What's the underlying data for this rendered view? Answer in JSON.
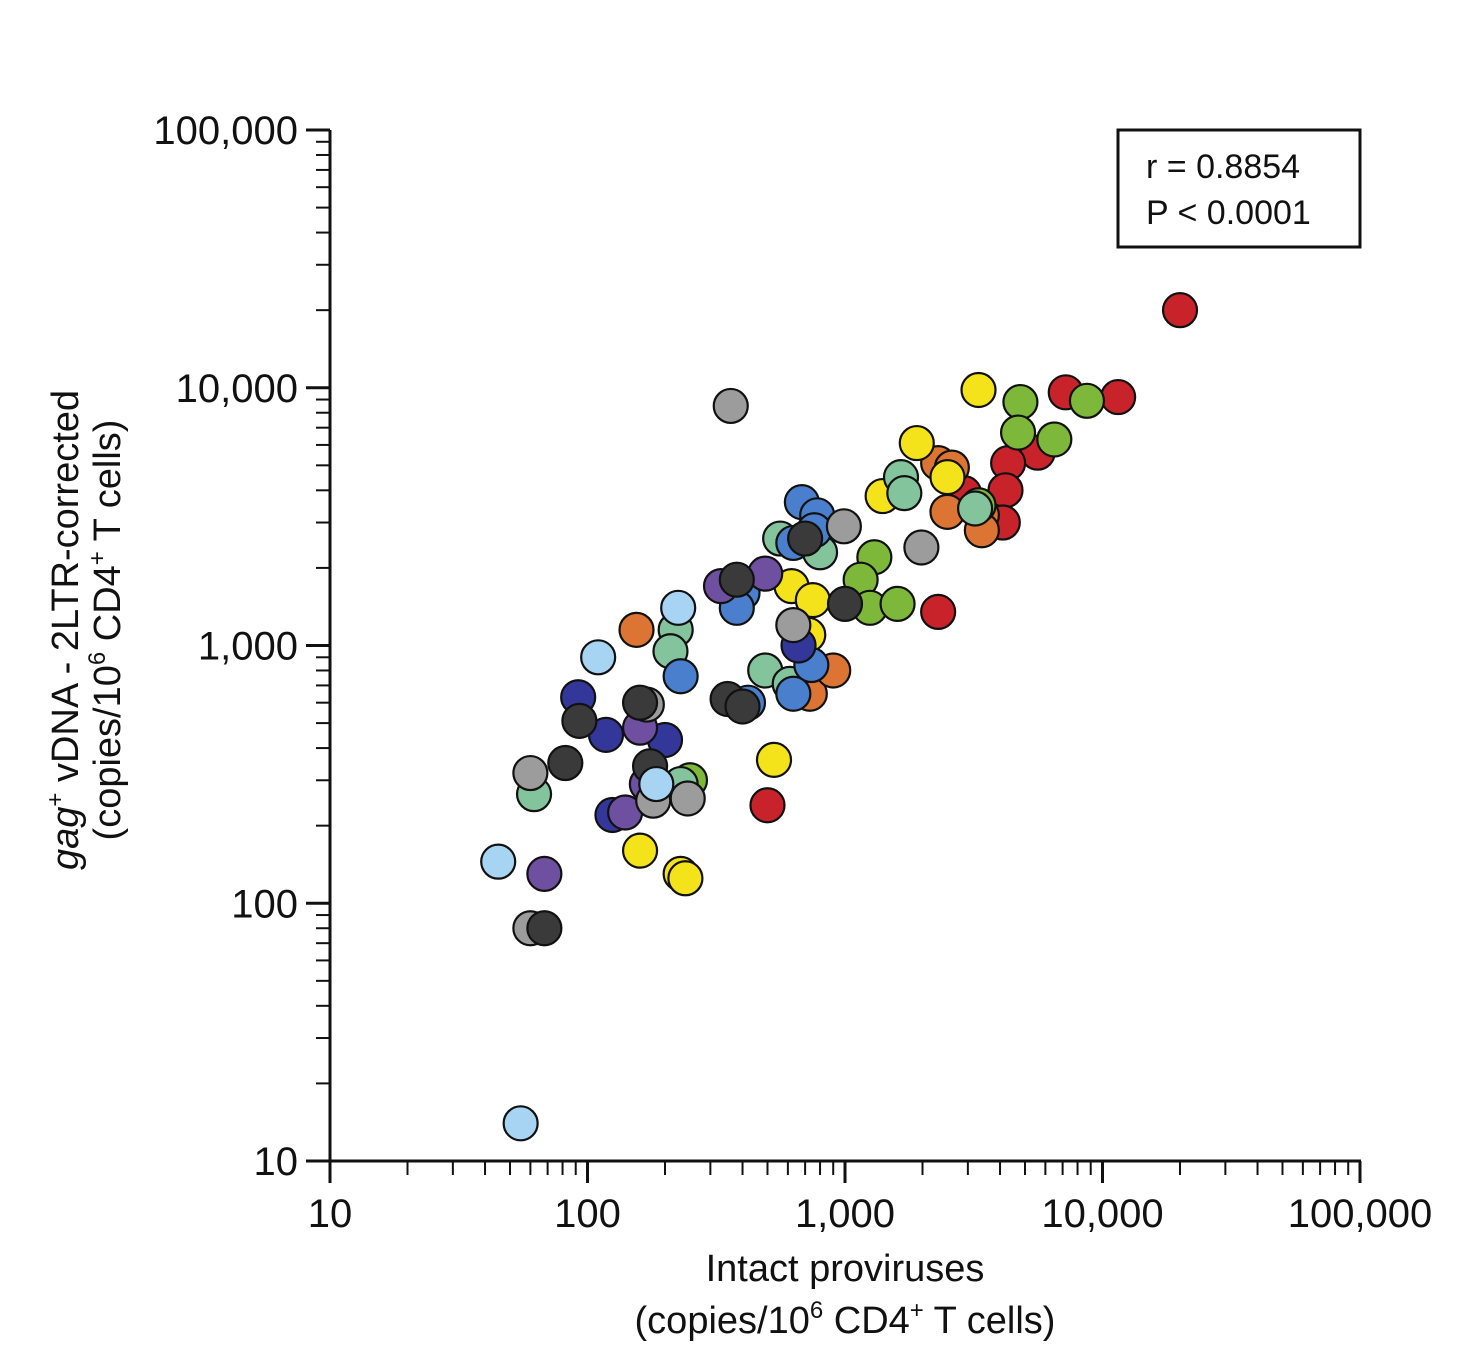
{
  "chart_data": {
    "type": "scatter",
    "x_scale": "log",
    "y_scale": "log",
    "xlim": [
      10,
      100000
    ],
    "ylim": [
      10,
      100000
    ],
    "grid": false,
    "xlabel_line1": "Intact proviruses",
    "xlabel_line2_pre": "(copies/10",
    "xlabel_line2_sup1": "6",
    "xlabel_line2_mid": " CD4",
    "xlabel_line2_sup2": "+",
    "xlabel_line2_post": " T cells)",
    "ylabel_line1_italic": "gag",
    "ylabel_line1_sup": "+",
    "ylabel_line1_rest": " vDNA - 2LTR-corrected",
    "ylabel_line2_pre": "(copies/10",
    "ylabel_line2_sup1": "6",
    "ylabel_line2_mid": " CD4",
    "ylabel_line2_sup2": "+",
    "ylabel_line2_post": " T cells)",
    "x_ticks": [
      "10",
      "100",
      "1,000",
      "10,000",
      "100,000"
    ],
    "y_ticks": [
      "10",
      "100",
      "1,000",
      "10,000",
      "100,000"
    ],
    "stats": {
      "r": "r = 0.8854",
      "p": "P < 0.0001"
    },
    "colors": {
      "red": "#c8232a",
      "orange": "#dc7433",
      "yellow": "#f4e21b",
      "green": "#7db83a",
      "seagreen": "#84c49c",
      "blue": "#4a7fcd",
      "navy": "#33379a",
      "purple": "#6e4fa0",
      "gray": "#9c9c9c",
      "dark": "#3a3a3a",
      "lightblue": "#a8d4f3"
    },
    "points": [
      {
        "x": 20000,
        "y": 20000,
        "c": "red"
      },
      {
        "x": 7200,
        "y": 9600,
        "c": "red"
      },
      {
        "x": 11500,
        "y": 9200,
        "c": "red"
      },
      {
        "x": 5600,
        "y": 5600,
        "c": "red"
      },
      {
        "x": 4300,
        "y": 5100,
        "c": "red"
      },
      {
        "x": 4200,
        "y": 4000,
        "c": "red"
      },
      {
        "x": 4100,
        "y": 3000,
        "c": "red"
      },
      {
        "x": 2900,
        "y": 3900,
        "c": "red"
      },
      {
        "x": 2300,
        "y": 1350,
        "c": "red"
      },
      {
        "x": 500,
        "y": 240,
        "c": "red"
      },
      {
        "x": 2300,
        "y": 5100,
        "c": "orange"
      },
      {
        "x": 2600,
        "y": 4900,
        "c": "orange"
      },
      {
        "x": 2500,
        "y": 3300,
        "c": "orange"
      },
      {
        "x": 3400,
        "y": 3200,
        "c": "orange"
      },
      {
        "x": 3400,
        "y": 2800,
        "c": "orange"
      },
      {
        "x": 730,
        "y": 650,
        "c": "orange"
      },
      {
        "x": 900,
        "y": 800,
        "c": "orange"
      },
      {
        "x": 155,
        "y": 1150,
        "c": "orange"
      },
      {
        "x": 3300,
        "y": 9800,
        "c": "yellow"
      },
      {
        "x": 1900,
        "y": 6100,
        "c": "yellow"
      },
      {
        "x": 2500,
        "y": 4500,
        "c": "yellow"
      },
      {
        "x": 1400,
        "y": 3800,
        "c": "yellow"
      },
      {
        "x": 620,
        "y": 1700,
        "c": "yellow"
      },
      {
        "x": 750,
        "y": 1500,
        "c": "yellow"
      },
      {
        "x": 720,
        "y": 1100,
        "c": "yellow"
      },
      {
        "x": 530,
        "y": 360,
        "c": "yellow"
      },
      {
        "x": 160,
        "y": 160,
        "c": "yellow"
      },
      {
        "x": 230,
        "y": 130,
        "c": "yellow"
      },
      {
        "x": 240,
        "y": 125,
        "c": "yellow"
      },
      {
        "x": 4800,
        "y": 8800,
        "c": "green"
      },
      {
        "x": 8700,
        "y": 8900,
        "c": "green"
      },
      {
        "x": 4700,
        "y": 6700,
        "c": "green"
      },
      {
        "x": 6500,
        "y": 6300,
        "c": "green"
      },
      {
        "x": 3300,
        "y": 3500,
        "c": "green"
      },
      {
        "x": 1300,
        "y": 2200,
        "c": "green"
      },
      {
        "x": 1150,
        "y": 1800,
        "c": "green"
      },
      {
        "x": 1250,
        "y": 1400,
        "c": "green"
      },
      {
        "x": 1600,
        "y": 1450,
        "c": "green"
      },
      {
        "x": 250,
        "y": 300,
        "c": "green"
      },
      {
        "x": 1650,
        "y": 4500,
        "c": "seagreen"
      },
      {
        "x": 1700,
        "y": 3900,
        "c": "seagreen"
      },
      {
        "x": 3200,
        "y": 3400,
        "c": "seagreen"
      },
      {
        "x": 560,
        "y": 2600,
        "c": "seagreen"
      },
      {
        "x": 800,
        "y": 2300,
        "c": "seagreen"
      },
      {
        "x": 220,
        "y": 1150,
        "c": "seagreen"
      },
      {
        "x": 210,
        "y": 950,
        "c": "seagreen"
      },
      {
        "x": 490,
        "y": 800,
        "c": "seagreen"
      },
      {
        "x": 610,
        "y": 710,
        "c": "seagreen"
      },
      {
        "x": 230,
        "y": 290,
        "c": "seagreen"
      },
      {
        "x": 62,
        "y": 265,
        "c": "seagreen"
      },
      {
        "x": 680,
        "y": 3600,
        "c": "blue"
      },
      {
        "x": 780,
        "y": 3200,
        "c": "blue"
      },
      {
        "x": 760,
        "y": 2800,
        "c": "blue"
      },
      {
        "x": 630,
        "y": 2500,
        "c": "blue"
      },
      {
        "x": 400,
        "y": 1600,
        "c": "blue"
      },
      {
        "x": 380,
        "y": 1400,
        "c": "blue"
      },
      {
        "x": 230,
        "y": 760,
        "c": "blue"
      },
      {
        "x": 740,
        "y": 840,
        "c": "blue"
      },
      {
        "x": 630,
        "y": 650,
        "c": "blue"
      },
      {
        "x": 420,
        "y": 600,
        "c": "blue"
      },
      {
        "x": 660,
        "y": 1000,
        "c": "navy"
      },
      {
        "x": 92,
        "y": 630,
        "c": "navy"
      },
      {
        "x": 118,
        "y": 450,
        "c": "navy"
      },
      {
        "x": 200,
        "y": 430,
        "c": "navy"
      },
      {
        "x": 125,
        "y": 220,
        "c": "navy"
      },
      {
        "x": 330,
        "y": 1700,
        "c": "purple"
      },
      {
        "x": 490,
        "y": 1900,
        "c": "purple"
      },
      {
        "x": 160,
        "y": 480,
        "c": "purple"
      },
      {
        "x": 170,
        "y": 290,
        "c": "purple"
      },
      {
        "x": 140,
        "y": 225,
        "c": "purple"
      },
      {
        "x": 68,
        "y": 130,
        "c": "purple"
      },
      {
        "x": 360,
        "y": 8500,
        "c": "gray"
      },
      {
        "x": 990,
        "y": 2900,
        "c": "gray"
      },
      {
        "x": 1980,
        "y": 2400,
        "c": "gray"
      },
      {
        "x": 630,
        "y": 1200,
        "c": "gray"
      },
      {
        "x": 170,
        "y": 590,
        "c": "gray"
      },
      {
        "x": 180,
        "y": 250,
        "c": "gray"
      },
      {
        "x": 245,
        "y": 255,
        "c": "gray"
      },
      {
        "x": 60,
        "y": 320,
        "c": "gray"
      },
      {
        "x": 60,
        "y": 80,
        "c": "gray"
      },
      {
        "x": 700,
        "y": 2600,
        "c": "dark"
      },
      {
        "x": 380,
        "y": 1800,
        "c": "dark"
      },
      {
        "x": 1000,
        "y": 1450,
        "c": "dark"
      },
      {
        "x": 350,
        "y": 620,
        "c": "dark"
      },
      {
        "x": 400,
        "y": 580,
        "c": "dark"
      },
      {
        "x": 160,
        "y": 600,
        "c": "dark"
      },
      {
        "x": 93,
        "y": 510,
        "c": "dark"
      },
      {
        "x": 82,
        "y": 350,
        "c": "dark"
      },
      {
        "x": 175,
        "y": 340,
        "c": "dark"
      },
      {
        "x": 68,
        "y": 80,
        "c": "dark"
      },
      {
        "x": 225,
        "y": 1400,
        "c": "lightblue"
      },
      {
        "x": 110,
        "y": 900,
        "c": "lightblue"
      },
      {
        "x": 185,
        "y": 290,
        "c": "lightblue"
      },
      {
        "x": 45,
        "y": 145,
        "c": "lightblue"
      },
      {
        "x": 55,
        "y": 14,
        "c": "lightblue"
      }
    ]
  }
}
